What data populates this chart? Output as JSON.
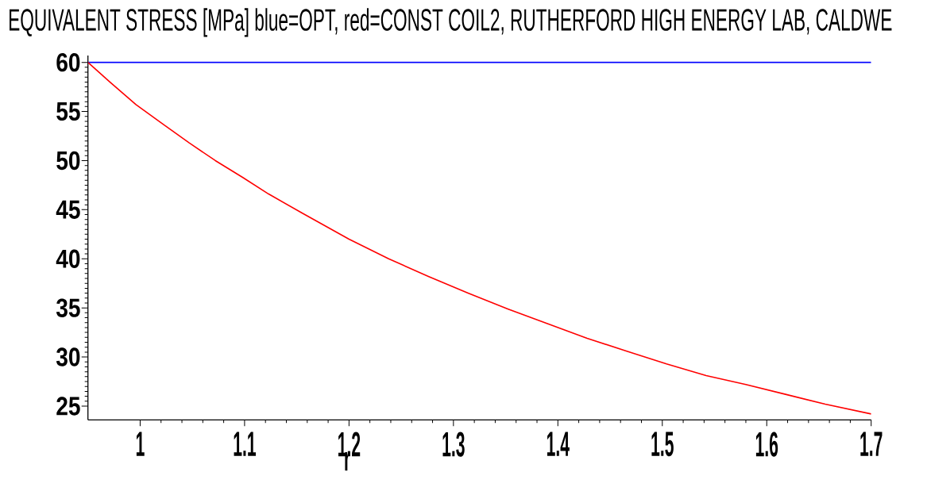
{
  "chart_data": {
    "type": "line",
    "title": "EQUIVALENT STRESS [MPa] blue=OPT, red=CONST COIL2, RUTHERFORD HIGH ENERGY LAB, CALDWE",
    "xlabel": "r",
    "xlim": [
      0.95,
      1.7
    ],
    "ylim": [
      23.6,
      60.7
    ],
    "xticks": [
      1,
      1.1,
      1.2,
      1.3,
      1.4,
      1.5,
      1.6,
      1.7
    ],
    "yticks": [
      25,
      30,
      35,
      40,
      45,
      50,
      55,
      60
    ],
    "series": [
      {
        "color": "#0000ff",
        "x": [
          0.95,
          1.7
        ],
        "values": [
          60,
          60
        ]
      },
      {
        "color": "#ff0000",
        "x": [
          0.95,
          0.971,
          0.996,
          1.022,
          1.047,
          1.072,
          1.098,
          1.123,
          1.156,
          1.2,
          1.238,
          1.276,
          1.314,
          1.352,
          1.39,
          1.428,
          1.466,
          1.504,
          1.542,
          1.58,
          1.618,
          1.656,
          1.7
        ],
        "values": [
          60,
          58.0,
          55.7,
          53.7,
          51.8,
          50.0,
          48.3,
          46.6,
          44.6,
          42.0,
          40.0,
          38.2,
          36.5,
          34.9,
          33.4,
          31.9,
          30.6,
          29.3,
          28.1,
          27.2,
          26.2,
          25.2,
          24.2
        ]
      }
    ]
  }
}
